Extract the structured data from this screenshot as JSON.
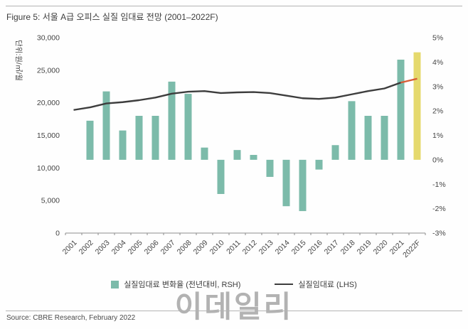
{
  "figure": {
    "title": "Figure 5: 서울 A급 오피스 실질 임대료 전망 (2001–2022F)",
    "source": "Source: CBRE Research, February 2022",
    "watermark": "이데일리"
  },
  "chart_data": {
    "type": "bar",
    "subtype": "bar+line combo, dual axis",
    "title": "서울 A급 오피스 실질 임대료 전망 (2001–2022F)",
    "categories": [
      "2001",
      "2002",
      "2003",
      "2004",
      "2005",
      "2006",
      "2007",
      "2008",
      "2009",
      "2010",
      "2011",
      "2012",
      "2013",
      "2014",
      "2015",
      "2016",
      "2017",
      "2018",
      "2019",
      "2020",
      "2021",
      "2022F"
    ],
    "series": [
      {
        "name": "실질임대료 변화율 (전년대비, RSH)",
        "type": "bar",
        "axis": "right",
        "unit": "%",
        "color": "#7cbbaa",
        "forecast_color": "#e5d96d",
        "values": [
          null,
          1.6,
          2.8,
          1.2,
          1.8,
          1.8,
          3.2,
          2.7,
          0.5,
          -1.4,
          0.4,
          0.2,
          -0.7,
          -1.9,
          -2.1,
          -0.4,
          0.6,
          2.4,
          1.8,
          1.8,
          4.1,
          4.4
        ]
      },
      {
        "name": "실질임대료 (LHS)",
        "type": "line",
        "axis": "left",
        "unit": "원/㎡/월",
        "color": "#3d3d3d",
        "forecast_color": "#d85c35",
        "values": [
          18900,
          19300,
          19900,
          20100,
          20400,
          20800,
          21400,
          21700,
          21800,
          21500,
          21600,
          21650,
          21500,
          21100,
          20700,
          20600,
          20800,
          21300,
          21800,
          22200,
          23100,
          23700
        ]
      }
    ],
    "left_axis": {
      "label": "단위:원/㎡/월",
      "min": 0,
      "max": 30000,
      "tick_labels": [
        "0",
        "5,000",
        "10,000",
        "15,000",
        "20,000",
        "25,000",
        "30,000"
      ]
    },
    "right_axis": {
      "min": -3,
      "max": 5,
      "tick_labels": [
        "-3%",
        "-2%",
        "-1%",
        "0%",
        "1%",
        "2%",
        "3%",
        "4%",
        "5%"
      ]
    },
    "forecast_category": "2022F",
    "grid": false,
    "legend_position": "bottom"
  }
}
